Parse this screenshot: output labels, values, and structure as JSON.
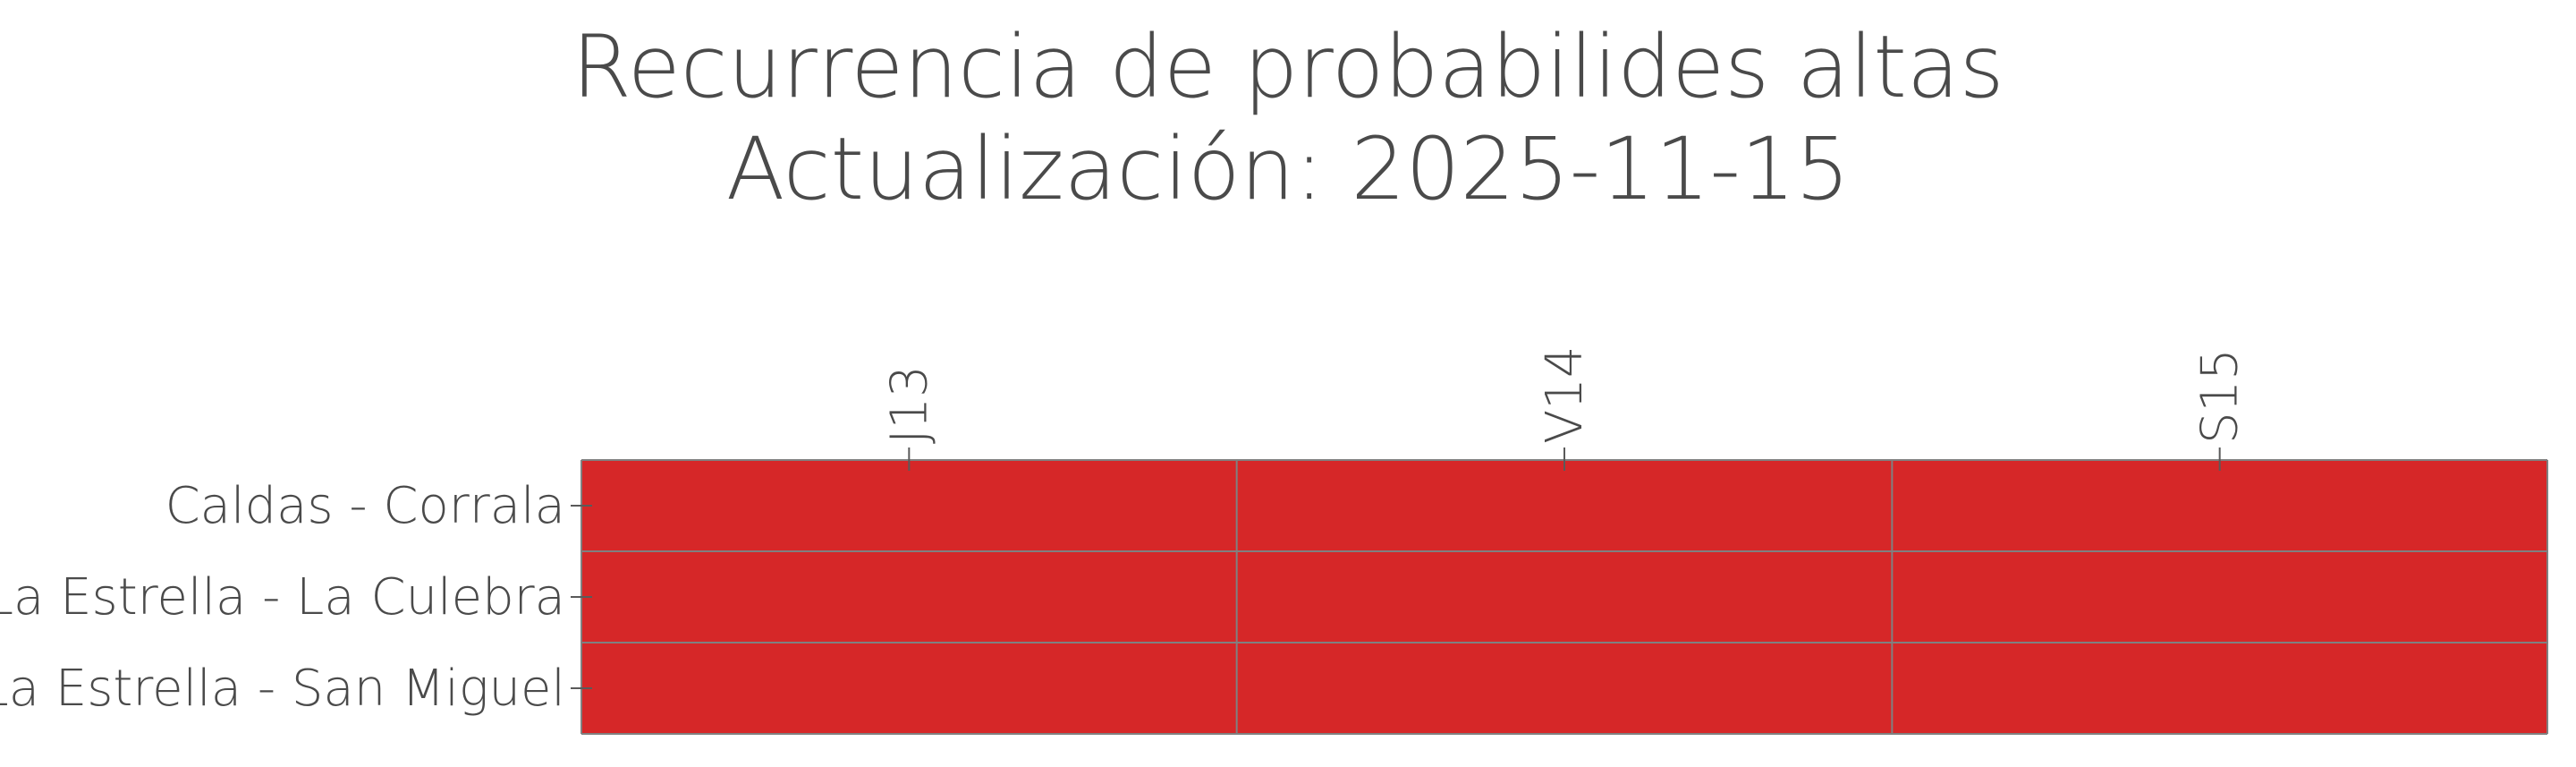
{
  "chart_data": {
    "type": "heatmap",
    "title": "Recurrencia de probabilides altas",
    "subtitle": "Actualización: 2025-11-15",
    "x_categories": [
      "J13",
      "V14",
      "S15"
    ],
    "y_categories": [
      "Caldas - Corrala",
      "La Estrella - La Culebra",
      "La Estrella - San Miguel"
    ],
    "values": [
      [
        1,
        1,
        1
      ],
      [
        1,
        1,
        1
      ],
      [
        1,
        1,
        1
      ]
    ],
    "x_axis_position": "top",
    "cell_color": "#d62728",
    "grid_color": "#808080",
    "text_color": "#4a4a4a"
  }
}
